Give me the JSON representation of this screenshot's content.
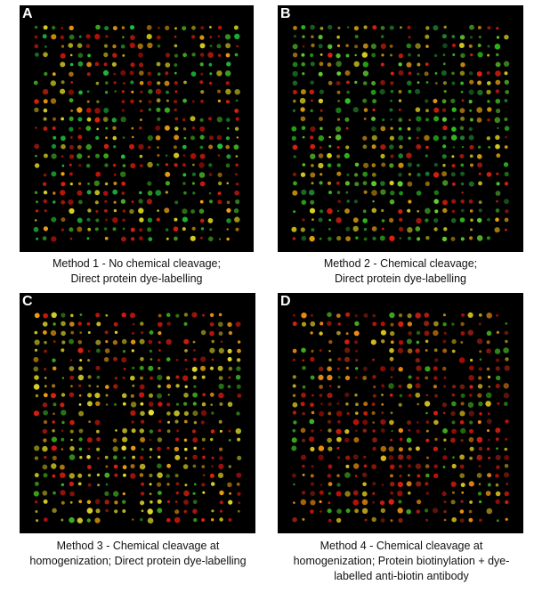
{
  "panels": [
    {
      "id": "A",
      "letter": "A",
      "caption_lines": [
        "Method 1 - No chemical cleavage;",
        "Direct protein dye-labelling"
      ],
      "grid": {
        "cols": 24,
        "rows": 24,
        "seed": 11
      },
      "palette": [
        "#e02010",
        "#c81408",
        "#f0a010",
        "#40b020",
        "#20c040",
        "#d8d020"
      ]
    },
    {
      "id": "B",
      "letter": "B",
      "caption_lines": [
        "Method 2 - Chemical cleavage;",
        "Direct protein dye-labelling"
      ],
      "grid": {
        "cols": 25,
        "rows": 24,
        "seed": 23
      },
      "palette": [
        "#30c020",
        "#60d030",
        "#d8d020",
        "#e0a010",
        "#e02010",
        "#208030"
      ]
    },
    {
      "id": "C",
      "letter": "C",
      "caption_lines": [
        "Method 3 - Chemical cleavage at",
        "homogenization; Direct protein dye-labelling"
      ],
      "grid": {
        "cols": 24,
        "rows": 24,
        "seed": 37
      },
      "palette": [
        "#e02010",
        "#d01810",
        "#f0a010",
        "#40b020",
        "#c8c020",
        "#e8e030"
      ]
    },
    {
      "id": "D",
      "letter": "D",
      "caption_lines": [
        "Method 4 - Chemical cleavage at",
        "homogenization; Protein biotinylation + dye-",
        "labelled anti-biotin antibody"
      ],
      "grid": {
        "cols": 25,
        "rows": 24,
        "seed": 51
      },
      "palette": [
        "#e02010",
        "#c01008",
        "#f09010",
        "#40b020",
        "#d8c020",
        "#902010"
      ]
    }
  ]
}
